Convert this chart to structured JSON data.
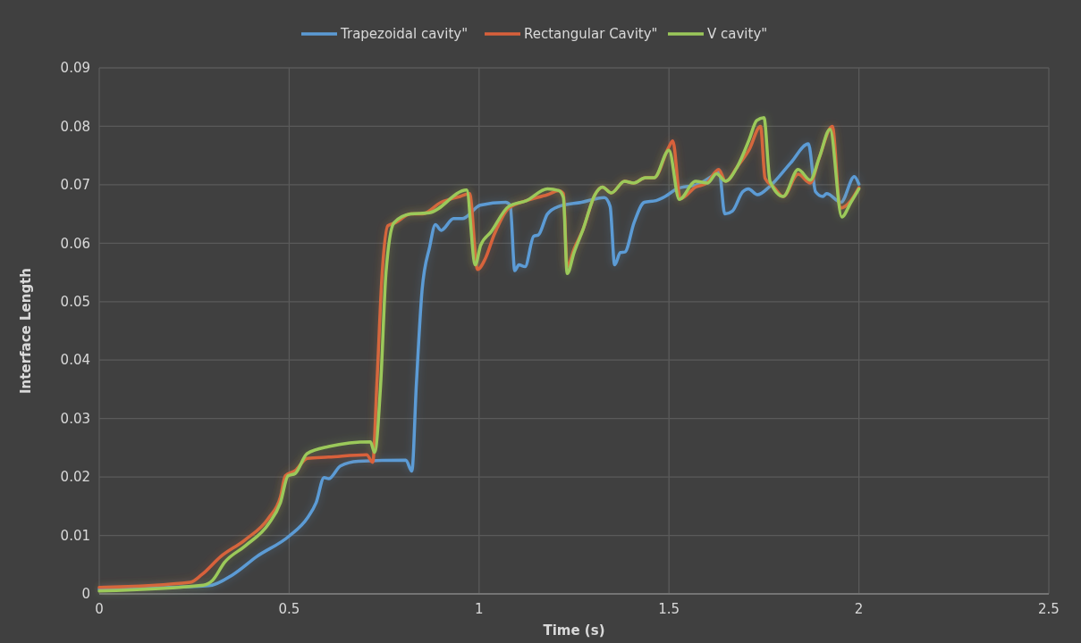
{
  "chart_data": {
    "type": "line",
    "xlabel": "Time (s)",
    "ylabel": "Interface Length",
    "xlim": [
      0,
      2.5
    ],
    "xticks": [
      0,
      0.5,
      1,
      1.5,
      2,
      2.5
    ],
    "ylim": [
      0,
      0.09
    ],
    "yticks": [
      0,
      0.01,
      0.02,
      0.03,
      0.04,
      0.05,
      0.06,
      0.07,
      0.08,
      0.09
    ],
    "grid": true,
    "legend": "top",
    "marker": "none",
    "line_style": "solid",
    "series": [
      {
        "name": "Trapezoidal cavity\"",
        "color": "#5b9bd5",
        "x": [
          0,
          0.289,
          0.352,
          0.415,
          0.5,
          0.548,
          0.571,
          0.592,
          0.604,
          0.635,
          0.682,
          0.807,
          0.823,
          0.835,
          0.85,
          0.87,
          0.885,
          0.9,
          0.933,
          0.956,
          1.003,
          1.07,
          1.082,
          1.094,
          1.105,
          1.121,
          1.144,
          1.156,
          1.18,
          1.21,
          1.27,
          1.33,
          1.345,
          1.357,
          1.372,
          1.384,
          1.408,
          1.435,
          1.466,
          1.49,
          1.521,
          1.576,
          1.616,
          1.632,
          1.647,
          1.667,
          1.694,
          1.709,
          1.733,
          1.765,
          1.82,
          1.867,
          1.886,
          1.905,
          1.915,
          1.953,
          1.988,
          2.0
        ],
        "values": [
          0.0008,
          0.0014,
          0.0033,
          0.0064,
          0.0099,
          0.013,
          0.0156,
          0.0199,
          0.0197,
          0.0219,
          0.0227,
          0.0229,
          0.021,
          0.036,
          0.052,
          0.0594,
          0.0632,
          0.0622,
          0.0642,
          0.0642,
          0.0665,
          0.067,
          0.0665,
          0.0553,
          0.0563,
          0.056,
          0.0612,
          0.0614,
          0.065,
          0.0663,
          0.067,
          0.0678,
          0.0663,
          0.0563,
          0.0584,
          0.0585,
          0.0635,
          0.067,
          0.0673,
          0.068,
          0.0693,
          0.0701,
          0.0716,
          0.0724,
          0.065,
          0.0655,
          0.0688,
          0.0693,
          0.0683,
          0.0697,
          0.0737,
          0.077,
          0.0688,
          0.068,
          0.0685,
          0.067,
          0.0714,
          0.0701
        ]
      },
      {
        "name": "Rectangular Cavity\"",
        "color": "#d9603b",
        "x": [
          0,
          0.24,
          0.27,
          0.32,
          0.383,
          0.446,
          0.477,
          0.49,
          0.516,
          0.548,
          0.604,
          0.704,
          0.72,
          0.731,
          0.745,
          0.76,
          0.78,
          0.82,
          0.85,
          0.9,
          0.95,
          0.975,
          0.996,
          1.016,
          1.04,
          1.078,
          1.125,
          1.18,
          1.21,
          1.222,
          1.232,
          1.25,
          1.274,
          1.305,
          1.325,
          1.348,
          1.383,
          1.407,
          1.438,
          1.461,
          1.5,
          1.51,
          1.53,
          1.57,
          1.6,
          1.631,
          1.649,
          1.68,
          1.711,
          1.741,
          1.753,
          1.776,
          1.801,
          1.84,
          1.872,
          1.896,
          1.93,
          1.951,
          1.979,
          2.0
        ],
        "values": [
          0.0011,
          0.002,
          0.0033,
          0.0064,
          0.0092,
          0.013,
          0.0166,
          0.0202,
          0.0211,
          0.0232,
          0.0234,
          0.0238,
          0.0225,
          0.036,
          0.055,
          0.063,
          0.0635,
          0.065,
          0.065,
          0.067,
          0.068,
          0.0685,
          0.0555,
          0.0573,
          0.0615,
          0.066,
          0.0673,
          0.0683,
          0.069,
          0.0685,
          0.056,
          0.059,
          0.0624,
          0.0683,
          0.0696,
          0.0686,
          0.0706,
          0.0703,
          0.0712,
          0.0712,
          0.0765,
          0.0775,
          0.0676,
          0.0696,
          0.0703,
          0.0726,
          0.0706,
          0.0731,
          0.076,
          0.08,
          0.0711,
          0.0696,
          0.068,
          0.0718,
          0.0703,
          0.0747,
          0.08,
          0.066,
          0.0673,
          0.0695
        ]
      },
      {
        "name": "V cavity\"",
        "color": "#9bc95a",
        "x": [
          0,
          0.274,
          0.298,
          0.33,
          0.384,
          0.446,
          0.477,
          0.497,
          0.516,
          0.547,
          0.604,
          0.714,
          0.725,
          0.741,
          0.755,
          0.776,
          0.82,
          0.869,
          0.967,
          0.99,
          1.004,
          1.031,
          1.078,
          1.125,
          1.18,
          1.21,
          1.222,
          1.232,
          1.25,
          1.274,
          1.305,
          1.325,
          1.348,
          1.383,
          1.407,
          1.438,
          1.461,
          1.5,
          1.527,
          1.57,
          1.602,
          1.625,
          1.649,
          1.68,
          1.711,
          1.731,
          1.75,
          1.766,
          1.801,
          1.84,
          1.872,
          1.896,
          1.924,
          1.955,
          1.979,
          2.0
        ],
        "values": [
          0.0005,
          0.0015,
          0.0023,
          0.0054,
          0.0082,
          0.012,
          0.0156,
          0.0202,
          0.0206,
          0.024,
          0.0252,
          0.026,
          0.0242,
          0.036,
          0.055,
          0.0635,
          0.065,
          0.0652,
          0.0691,
          0.0563,
          0.0596,
          0.0619,
          0.0663,
          0.0673,
          0.0693,
          0.069,
          0.0678,
          0.0548,
          0.0584,
          0.0624,
          0.0683,
          0.0696,
          0.0686,
          0.0706,
          0.0703,
          0.0712,
          0.0712,
          0.0759,
          0.0675,
          0.0706,
          0.0703,
          0.0719,
          0.0706,
          0.0731,
          0.0777,
          0.081,
          0.0815,
          0.0706,
          0.068,
          0.0726,
          0.0708,
          0.0747,
          0.0795,
          0.0645,
          0.067,
          0.0693
        ]
      }
    ]
  }
}
